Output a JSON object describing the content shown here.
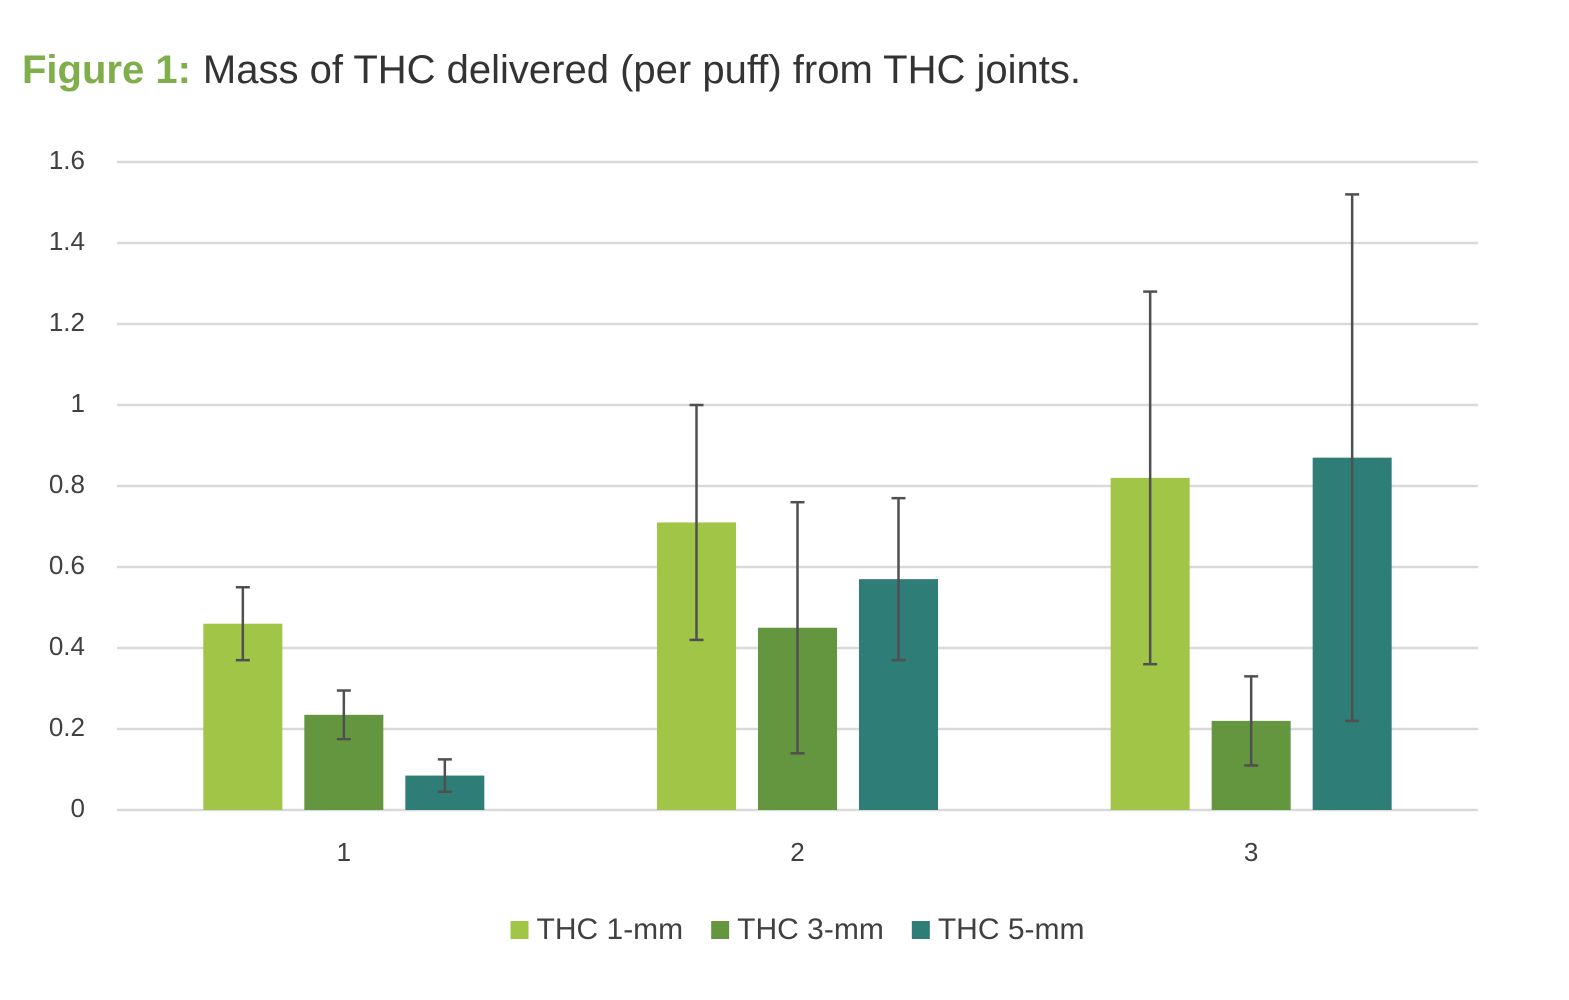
{
  "chart_data": {
    "type": "bar",
    "figure_label": "Figure 1:",
    "title": "Mass of THC delivered (per puff) from THC joints.",
    "categories": [
      "1",
      "2",
      "3"
    ],
    "series": [
      {
        "name": "THC 1-mm",
        "color": "#a0c547",
        "values": [
          0.46,
          0.71,
          0.82
        ],
        "errors": [
          0.09,
          0.29,
          0.46
        ]
      },
      {
        "name": "THC 3-mm",
        "color": "#63963f",
        "values": [
          0.235,
          0.45,
          0.22
        ],
        "errors": [
          0.06,
          0.31,
          0.11
        ]
      },
      {
        "name": "THC 5-mm",
        "color": "#2e7d76",
        "values": [
          0.085,
          0.57,
          0.87
        ],
        "errors": [
          0.04,
          0.2,
          0.65
        ]
      }
    ],
    "ylim": [
      0,
      1.6
    ],
    "yticks": [
      0,
      0.2,
      0.4,
      0.6,
      0.8,
      1,
      1.2,
      1.4,
      1.6
    ],
    "grid": true,
    "legend": "bottom"
  }
}
